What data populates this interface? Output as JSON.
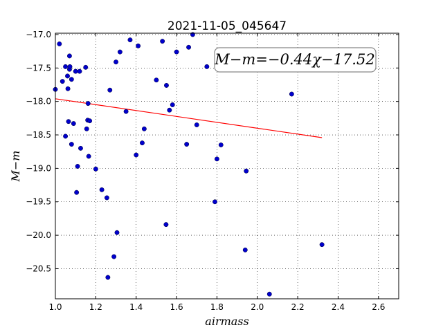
{
  "chart_data": {
    "type": "scatter",
    "title": "2021-11-05_045647",
    "xlabel": "airmass",
    "ylabel": "M−m",
    "xlim": [
      1.0,
      2.7
    ],
    "ylim": [
      -20.95,
      -16.98
    ],
    "x_ticks": [
      "1.0",
      "1.2",
      "1.4",
      "1.6",
      "1.8",
      "2.0",
      "2.2",
      "2.4",
      "2.6"
    ],
    "x_tick_values": [
      1.0,
      1.2,
      1.4,
      1.6,
      1.8,
      2.0,
      2.2,
      2.4,
      2.6
    ],
    "y_ticks": [
      "−17.0",
      "−17.5",
      "−18.0",
      "−18.5",
      "−19.0",
      "−19.5",
      "−20.0",
      "−20.5"
    ],
    "y_tick_values": [
      -17.0,
      -17.5,
      -18.0,
      -18.5,
      -19.0,
      -19.5,
      -20.0,
      -20.5
    ],
    "grid": true,
    "annotation": "M−m=−0.44χ−17.52",
    "point_color": "#0000cc",
    "fit_color": "#ff0000",
    "fit_line": {
      "slope": -0.44,
      "intercept": -17.52,
      "x_range": [
        1.0,
        2.32
      ]
    },
    "points": [
      [
        1.0,
        -17.82
      ],
      [
        1.02,
        -17.14
      ],
      [
        1.035,
        -17.7
      ],
      [
        1.05,
        -17.48
      ],
      [
        1.05,
        -18.52
      ],
      [
        1.06,
        -17.62
      ],
      [
        1.062,
        -17.81
      ],
      [
        1.065,
        -18.3
      ],
      [
        1.07,
        -17.32
      ],
      [
        1.07,
        -17.52
      ],
      [
        1.072,
        -17.48
      ],
      [
        1.08,
        -17.67
      ],
      [
        1.08,
        -18.64
      ],
      [
        1.09,
        -18.33
      ],
      [
        1.1,
        -17.55
      ],
      [
        1.105,
        -19.36
      ],
      [
        1.11,
        -18.97
      ],
      [
        1.12,
        -17.55
      ],
      [
        1.125,
        -18.7
      ],
      [
        1.15,
        -17.49
      ],
      [
        1.155,
        -18.41
      ],
      [
        1.16,
        -18.28
      ],
      [
        1.162,
        -18.03
      ],
      [
        1.165,
        -18.82
      ],
      [
        1.17,
        -18.29
      ],
      [
        1.2,
        -19.01
      ],
      [
        1.23,
        -19.32
      ],
      [
        1.255,
        -19.44
      ],
      [
        1.26,
        -20.63
      ],
      [
        1.27,
        -17.83
      ],
      [
        1.29,
        -20.32
      ],
      [
        1.3,
        -17.41
      ],
      [
        1.305,
        -19.96
      ],
      [
        1.32,
        -17.26
      ],
      [
        1.35,
        -18.15
      ],
      [
        1.37,
        -17.08
      ],
      [
        1.4,
        -18.8
      ],
      [
        1.41,
        -17.17
      ],
      [
        1.43,
        -18.62
      ],
      [
        1.44,
        -18.41
      ],
      [
        1.5,
        -17.68
      ],
      [
        1.53,
        -17.1
      ],
      [
        1.548,
        -19.84
      ],
      [
        1.55,
        -17.76
      ],
      [
        1.565,
        -18.13
      ],
      [
        1.58,
        -18.05
      ],
      [
        1.6,
        -17.26
      ],
      [
        1.65,
        -18.64
      ],
      [
        1.66,
        -17.19
      ],
      [
        1.68,
        -17.0
      ],
      [
        1.7,
        -18.35
      ],
      [
        1.75,
        -17.48
      ],
      [
        1.79,
        -19.5
      ],
      [
        1.8,
        -18.86
      ],
      [
        1.82,
        -18.65
      ],
      [
        1.94,
        -20.22
      ],
      [
        1.945,
        -19.04
      ],
      [
        2.06,
        -20.88
      ],
      [
        2.17,
        -17.89
      ],
      [
        2.32,
        -20.14
      ]
    ]
  }
}
